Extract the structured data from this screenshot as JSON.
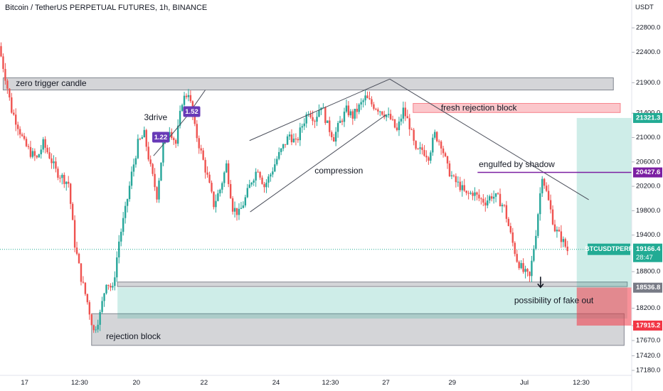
{
  "chart_data": {
    "type": "candlestick",
    "title": "Bitcoin / TetherUS PERPETUAL FUTURES, 1h, BINANCE",
    "unit": "USDT",
    "ylim": [
      17180,
      23000
    ],
    "xlim": [
      0,
      100
    ],
    "y_ticks": [
      "22800.0",
      "22400.0",
      "21900.0",
      "21400.0",
      "21000.0",
      "20600.0",
      "20200.0",
      "19800.0",
      "19400.0",
      "18800.0",
      "18200.0",
      "17915.2",
      "17670.0",
      "17420.0",
      "17180.0"
    ],
    "y_tick_values": [
      22800,
      22400,
      21900,
      21400,
      21000,
      20600,
      20200,
      19800,
      19400,
      18800,
      18200,
      17915.2,
      17670,
      17420,
      17180
    ],
    "x_ticks": [
      {
        "label": "17",
        "x": 3.9
      },
      {
        "label": "12:30",
        "x": 12.6
      },
      {
        "label": "20",
        "x": 21.6
      },
      {
        "label": "22",
        "x": 32.3
      },
      {
        "label": "24",
        "x": 43.7
      },
      {
        "label": "12:30",
        "x": 52.3
      },
      {
        "label": "27",
        "x": 61.1
      },
      {
        "label": "29",
        "x": 71.6
      },
      {
        "label": "Jul",
        "x": 83.0
      },
      {
        "label": "12:30",
        "x": 92.0
      }
    ],
    "price_path": [
      [
        0,
        22500
      ],
      [
        1,
        22000
      ],
      [
        2,
        21450
      ],
      [
        3,
        21200
      ],
      [
        4,
        20900
      ],
      [
        5,
        20750
      ],
      [
        6,
        20650
      ],
      [
        7,
        20900
      ],
      [
        8,
        20700
      ],
      [
        9,
        20450
      ],
      [
        10,
        20350
      ],
      [
        11,
        20250
      ],
      [
        12,
        19250
      ],
      [
        13,
        18700
      ],
      [
        14,
        18300
      ],
      [
        15,
        17820
      ],
      [
        16,
        18100
      ],
      [
        17,
        18650
      ],
      [
        18,
        18500
      ],
      [
        19,
        19300
      ],
      [
        20,
        19800
      ],
      [
        21,
        20400
      ],
      [
        22,
        20900
      ],
      [
        23,
        21050
      ],
      [
        24,
        20500
      ],
      [
        25,
        20050
      ],
      [
        26,
        20900
      ],
      [
        27,
        21150
      ],
      [
        28,
        20900
      ],
      [
        29,
        21600
      ],
      [
        30,
        21750
      ],
      [
        31,
        21150
      ],
      [
        32,
        20750
      ],
      [
        33,
        20350
      ],
      [
        34,
        19900
      ],
      [
        35,
        20150
      ],
      [
        36,
        20550
      ],
      [
        37,
        19850
      ],
      [
        38,
        19750
      ],
      [
        39,
        20000
      ],
      [
        40,
        20300
      ],
      [
        41,
        20500
      ],
      [
        42,
        20200
      ],
      [
        43,
        20400
      ],
      [
        44,
        20650
      ],
      [
        45,
        20850
      ],
      [
        46,
        21050
      ],
      [
        47,
        20900
      ],
      [
        48,
        21200
      ],
      [
        49,
        21450
      ],
      [
        50,
        21300
      ],
      [
        51,
        21550
      ],
      [
        52,
        21200
      ],
      [
        53,
        21000
      ],
      [
        54,
        21250
      ],
      [
        55,
        21450
      ],
      [
        56,
        21350
      ],
      [
        57,
        21500
      ],
      [
        58,
        21650
      ],
      [
        59,
        21550
      ],
      [
        60,
        21480
      ],
      [
        61,
        21400
      ],
      [
        62,
        21300
      ],
      [
        63,
        21100
      ],
      [
        64,
        21450
      ],
      [
        65,
        21200
      ],
      [
        66,
        20750
      ],
      [
        67,
        20800
      ],
      [
        68,
        20700
      ],
      [
        69,
        21050
      ],
      [
        70,
        20900
      ],
      [
        71,
        20500
      ],
      [
        72,
        20300
      ],
      [
        73,
        20200
      ],
      [
        74,
        20050
      ],
      [
        75,
        20100
      ],
      [
        76,
        20000
      ],
      [
        77,
        19950
      ],
      [
        78,
        20050
      ],
      [
        79,
        20000
      ],
      [
        80,
        19850
      ],
      [
        81,
        19400
      ],
      [
        82,
        19000
      ],
      [
        83,
        18800
      ],
      [
        84,
        18700
      ],
      [
        85,
        19450
      ],
      [
        86,
        20400
      ],
      [
        87,
        19950
      ],
      [
        88,
        19500
      ],
      [
        89,
        19350
      ],
      [
        90,
        19150
      ]
    ],
    "last_price": 19166.4,
    "series_tag": "BTCUSDTPERP",
    "countdown": "28:47",
    "price_tags": [
      {
        "value": 21321.3,
        "kind": "teal"
      },
      {
        "value": 20427.6,
        "kind": "purple"
      },
      {
        "value": 18536.8,
        "kind": "gray"
      },
      {
        "value": 17915.2,
        "kind": "red"
      }
    ],
    "zones": [
      {
        "kind": "gray",
        "x0": 0.5,
        "x1": 97.1,
        "y0": 21780,
        "y1": 21980
      },
      {
        "kind": "pink",
        "x0": 65.4,
        "x1": 98.2,
        "y0": 21410,
        "y1": 21560
      },
      {
        "kind": "gray",
        "x0": 14.5,
        "x1": 98.8,
        "y0": 17590,
        "y1": 18110
      },
      {
        "kind": "gray",
        "x0": 18.6,
        "x1": 99.3,
        "y0": 18555,
        "y1": 18630
      },
      {
        "kind": "teal",
        "x0": 18.6,
        "x1": 99.3,
        "y0": 18030,
        "y1": 18540
      },
      {
        "kind": "teal",
        "x0": 91.3,
        "x1": 100,
        "y0": 18540,
        "y1": 21321
      },
      {
        "kind": "red",
        "x0": 91.3,
        "x1": 100,
        "y0": 17915,
        "y1": 18540
      }
    ],
    "trendlines": [
      {
        "kind": "dark",
        "x0": 39.5,
        "y0": 20950,
        "x1": 61.7,
        "y1": 21960
      },
      {
        "kind": "dark",
        "x0": 39.6,
        "y0": 19780,
        "x1": 61.2,
        "y1": 21380
      },
      {
        "kind": "dark",
        "x0": 61.7,
        "y0": 21960,
        "x1": 93.2,
        "y1": 19980
      },
      {
        "kind": "purple",
        "x0": 75.6,
        "y0": 20427.6,
        "x1": 100,
        "y1": 20427.6
      },
      {
        "kind": "dark",
        "x0": 24.3,
        "y0": 20700,
        "x1": 26.8,
        "y1": 21000
      },
      {
        "kind": "dark",
        "x0": 26.8,
        "y0": 21000,
        "x1": 29.6,
        "y1": 21350
      },
      {
        "kind": "dark",
        "x0": 29.6,
        "y0": 21350,
        "x1": 32.5,
        "y1": 21780
      }
    ],
    "annotations": [
      {
        "text": "zero trigger candle",
        "x": 2.5,
        "y": 21880
      },
      {
        "text": "fresh rejection block",
        "x": 69.8,
        "y": 21480
      },
      {
        "text": "3drive",
        "x": 22.8,
        "y": 21320
      },
      {
        "text": "compression",
        "x": 49.8,
        "y": 20450
      },
      {
        "text": "engulfed by shadow",
        "x": 75.8,
        "y": 20550
      },
      {
        "text": "possibility of fake out",
        "x": 81.4,
        "y": 18320
      },
      {
        "text": "rejection block",
        "x": 16.8,
        "y": 17730
      }
    ],
    "badges": [
      {
        "text": "1.52",
        "x": 29.0,
        "y": 21420
      },
      {
        "text": "1.22",
        "x": 24.1,
        "y": 21000
      }
    ]
  }
}
